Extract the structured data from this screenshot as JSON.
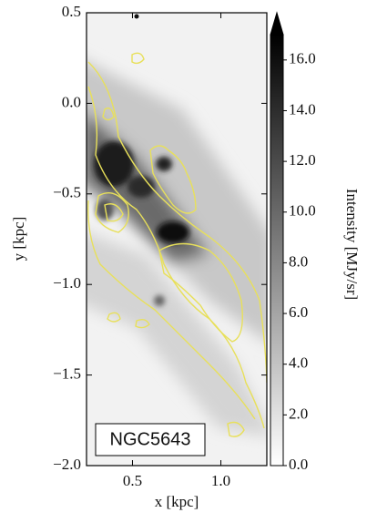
{
  "chart_data": {
    "type": "image",
    "xlabel": "x [kpc]",
    "ylabel": "y [kpc]",
    "annotation": "NGC5643",
    "xlim": [
      0.24,
      1.26
    ],
    "xticks": [
      0.5,
      {
        "value": 1.0,
        "label": "1.0"
      }
    ],
    "ylim": [
      -2.0,
      0.5
    ],
    "yticks": [
      {
        "value": -2.0,
        "label": "−2.0"
      },
      {
        "value": -1.5,
        "label": "−1.5"
      },
      {
        "value": -1.0,
        "label": "−1.0"
      },
      {
        "value": -0.5,
        "label": "−0.5"
      },
      {
        "value": 0.0,
        "label": "0.0"
      },
      0.5
    ],
    "colorbar": {
      "label": "Intensity [MJy/sr]",
      "clim": [
        0,
        17
      ],
      "extend": "max",
      "cmap": [
        "#ffffff",
        "#000000"
      ],
      "contour_color": "#e8e05a",
      "ticks": [
        {
          "value": 0,
          "label": "0.0"
        },
        {
          "value": 2,
          "label": "2.0"
        },
        {
          "value": 4,
          "label": "4.0"
        },
        {
          "value": 6,
          "label": "6.0"
        },
        {
          "value": 8,
          "label": "8.0"
        },
        {
          "value": 10,
          "label": "10.0"
        },
        {
          "value": 12,
          "label": "12.0"
        },
        {
          "value": 14,
          "label": "14.0"
        },
        {
          "value": 16,
          "label": "16.0"
        }
      ]
    }
  }
}
